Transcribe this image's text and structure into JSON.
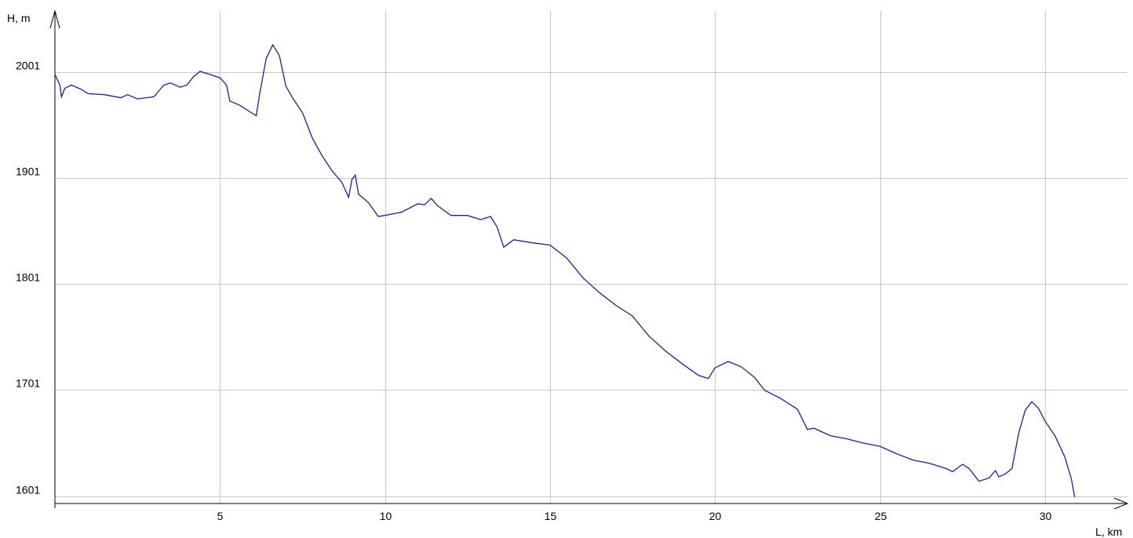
{
  "chart_data": {
    "type": "line",
    "xlabel": "L, km",
    "ylabel": "H, m",
    "x_ticks": [
      5,
      10,
      15,
      20,
      25,
      30
    ],
    "x_tick_labels": [
      "5",
      "10",
      "15",
      "20",
      "25",
      "30"
    ],
    "y_ticks": [
      1601,
      1701,
      1801,
      1901,
      2001
    ],
    "y_tick_labels": [
      "1601",
      "1701",
      "1801",
      "1901",
      "2001"
    ],
    "xlim": [
      0,
      32.5
    ],
    "ylim": [
      1594,
      2059
    ],
    "grid": true,
    "colors": {
      "series": "#1f1f8f",
      "grid": "#c8c8c8",
      "axis": "#000000"
    },
    "series": [
      {
        "values": [
          [
            0.0,
            1999
          ],
          [
            0.15,
            1989
          ],
          [
            0.2,
            1978
          ],
          [
            0.3,
            1986
          ],
          [
            0.5,
            1989
          ],
          [
            0.8,
            1985
          ],
          [
            1.0,
            1981
          ],
          [
            1.5,
            1980
          ],
          [
            2.0,
            1977
          ],
          [
            2.2,
            1980
          ],
          [
            2.5,
            1976
          ],
          [
            3.0,
            1978
          ],
          [
            3.3,
            1989
          ],
          [
            3.5,
            1991
          ],
          [
            3.8,
            1987
          ],
          [
            4.0,
            1989
          ],
          [
            4.2,
            1997
          ],
          [
            4.4,
            2002
          ],
          [
            4.7,
            1999
          ],
          [
            5.0,
            1996
          ],
          [
            5.2,
            1989
          ],
          [
            5.3,
            1974
          ],
          [
            5.6,
            1970
          ],
          [
            6.0,
            1962
          ],
          [
            6.1,
            1960
          ],
          [
            6.2,
            1980
          ],
          [
            6.4,
            2014
          ],
          [
            6.6,
            2027
          ],
          [
            6.8,
            2017
          ],
          [
            7.0,
            1988
          ],
          [
            7.2,
            1977
          ],
          [
            7.5,
            1963
          ],
          [
            7.8,
            1939
          ],
          [
            8.1,
            1922
          ],
          [
            8.4,
            1908
          ],
          [
            8.7,
            1897
          ],
          [
            8.9,
            1883
          ],
          [
            9.0,
            1900
          ],
          [
            9.1,
            1904
          ],
          [
            9.2,
            1886
          ],
          [
            9.5,
            1878
          ],
          [
            9.8,
            1865
          ],
          [
            10.0,
            1866
          ],
          [
            10.5,
            1869
          ],
          [
            11.0,
            1877
          ],
          [
            11.2,
            1876
          ],
          [
            11.4,
            1882
          ],
          [
            11.6,
            1875
          ],
          [
            12.0,
            1866
          ],
          [
            12.5,
            1866
          ],
          [
            12.9,
            1862
          ],
          [
            13.2,
            1865
          ],
          [
            13.4,
            1855
          ],
          [
            13.6,
            1836
          ],
          [
            13.9,
            1843
          ],
          [
            14.5,
            1840
          ],
          [
            15.0,
            1838
          ],
          [
            15.5,
            1826
          ],
          [
            16.0,
            1807
          ],
          [
            16.5,
            1793
          ],
          [
            17.0,
            1781
          ],
          [
            17.5,
            1771
          ],
          [
            18.0,
            1752
          ],
          [
            18.5,
            1738
          ],
          [
            19.0,
            1726
          ],
          [
            19.5,
            1715
          ],
          [
            19.8,
            1712
          ],
          [
            20.0,
            1722
          ],
          [
            20.4,
            1728
          ],
          [
            20.8,
            1723
          ],
          [
            21.2,
            1713
          ],
          [
            21.5,
            1701
          ],
          [
            22.0,
            1693
          ],
          [
            22.5,
            1683
          ],
          [
            22.8,
            1664
          ],
          [
            23.0,
            1665
          ],
          [
            23.5,
            1658
          ],
          [
            24.0,
            1655
          ],
          [
            24.5,
            1651
          ],
          [
            25.0,
            1648
          ],
          [
            25.5,
            1641
          ],
          [
            26.0,
            1635
          ],
          [
            26.5,
            1632
          ],
          [
            27.0,
            1627
          ],
          [
            27.2,
            1624
          ],
          [
            27.5,
            1631
          ],
          [
            27.7,
            1627
          ],
          [
            28.0,
            1615
          ],
          [
            28.3,
            1618
          ],
          [
            28.5,
            1625
          ],
          [
            28.6,
            1619
          ],
          [
            28.8,
            1622
          ],
          [
            29.0,
            1627
          ],
          [
            29.2,
            1660
          ],
          [
            29.4,
            1682
          ],
          [
            29.6,
            1690
          ],
          [
            29.8,
            1684
          ],
          [
            30.0,
            1672
          ],
          [
            30.3,
            1658
          ],
          [
            30.6,
            1638
          ],
          [
            30.8,
            1617
          ],
          [
            30.9,
            1600
          ]
        ]
      }
    ]
  }
}
